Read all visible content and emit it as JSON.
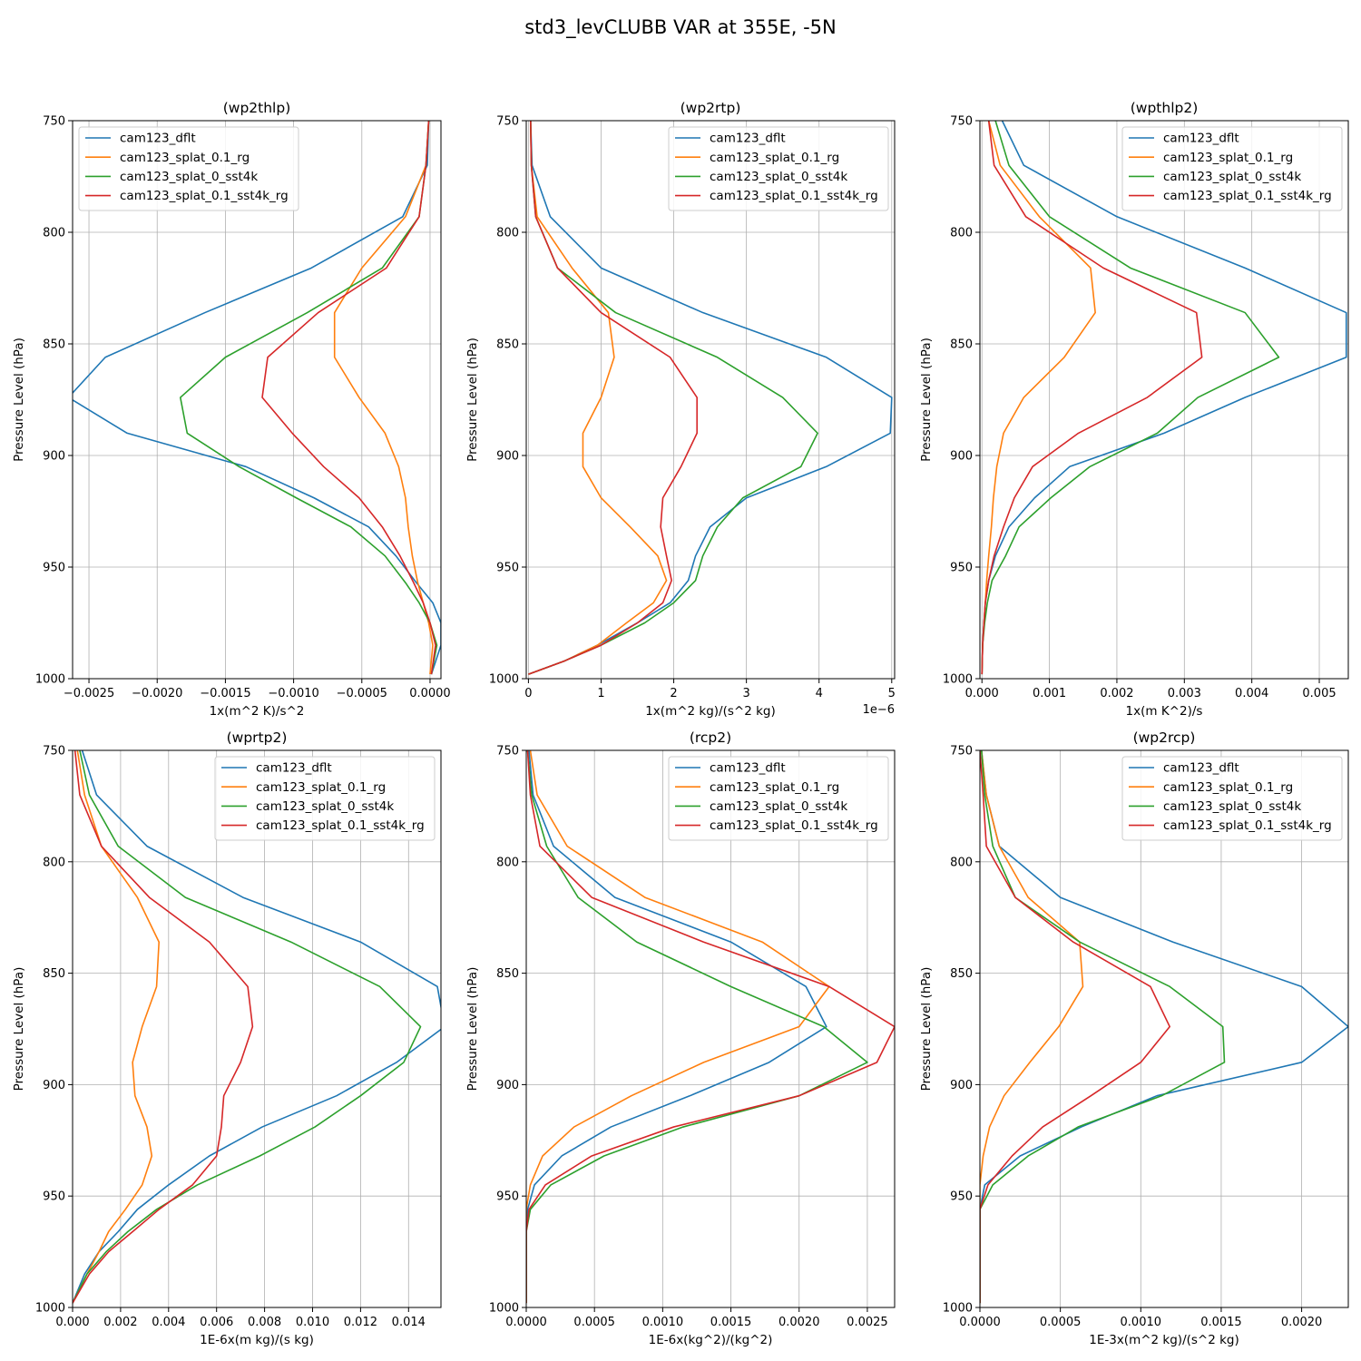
{
  "figure_title": "std3_levCLUBB VAR at 355E, -5N",
  "colors": {
    "cam123_dflt": "#1f77b4",
    "cam123_splat_0.1_rg": "#ff7f0e",
    "cam123_splat_0_sst4k": "#2ca02c",
    "cam123_splat_0.1_sst4k_rg": "#d62728"
  },
  "chart_data": [
    {
      "type": "line",
      "title": "(wp2thlp)",
      "xlabel": "1x(m^2 K)/s^2",
      "ylabel": "Pressure Level (hPa)",
      "xlim": [
        -0.00262,
        8e-05
      ],
      "ylim": [
        1000,
        750
      ],
      "xticks": [
        -0.0025,
        -0.002,
        -0.0015,
        -0.001,
        -0.0005,
        0.0
      ],
      "xtick_labels": [
        "−0.0025",
        "−0.0020",
        "−0.0015",
        "−0.0010",
        "−0.0005",
        "0.0000"
      ],
      "yticks": [
        750,
        800,
        850,
        900,
        950,
        1000
      ],
      "ytick_labels": [
        "750",
        "800",
        "850",
        "900",
        "950",
        "1000"
      ],
      "legend_loc": "upper-left",
      "y": [
        750,
        770,
        793,
        816,
        836,
        856,
        874,
        890,
        905,
        919,
        932,
        945,
        957,
        966,
        975,
        985,
        998
      ],
      "series": [
        {
          "name": "cam123_dflt",
          "values": [
            -1e-05,
            -2e-05,
            -0.0002,
            -0.00087,
            -0.00165,
            -0.00238,
            -0.00265,
            -0.00222,
            -0.00135,
            -0.00085,
            -0.00045,
            -0.00025,
            -0.0001,
            2e-05,
            8e-05,
            8e-05,
            1e-05
          ]
        },
        {
          "name": "cam123_splat_0.1_rg",
          "values": [
            -1e-05,
            -3e-05,
            -0.00018,
            -0.0005,
            -0.0007,
            -0.0007,
            -0.00052,
            -0.00033,
            -0.00023,
            -0.00018,
            -0.00016,
            -0.00013,
            -9e-05,
            -5e-05,
            -1e-05,
            2e-05,
            0.0
          ]
        },
        {
          "name": "cam123_splat_0_sst4k",
          "values": [
            -1e-05,
            -3e-05,
            -8e-05,
            -0.00035,
            -0.0009,
            -0.0015,
            -0.00183,
            -0.00178,
            -0.0014,
            -0.00098,
            -0.00058,
            -0.00033,
            -0.00018,
            -8e-05,
            0.0,
            5e-05,
            1e-05
          ]
        },
        {
          "name": "cam123_splat_0.1_sst4k_rg",
          "values": [
            -1e-05,
            -3e-05,
            -8e-05,
            -0.00032,
            -0.00082,
            -0.00119,
            -0.00123,
            -0.00101,
            -0.00078,
            -0.00052,
            -0.00035,
            -0.00022,
            -0.00012,
            -5e-05,
            0.0,
            4e-05,
            1e-05
          ]
        }
      ]
    },
    {
      "type": "line",
      "title": "(wp2rtp)",
      "xlabel": "1x(m^2 kg)/(s^2 kg)",
      "ylabel": "Pressure Level (hPa)",
      "offset_text": "1e−6",
      "xlim": [
        -0.03,
        5.04
      ],
      "ylim": [
        1000,
        750
      ],
      "xticks": [
        0,
        1,
        2,
        3,
        4,
        5
      ],
      "xtick_labels": [
        "0",
        "1",
        "2",
        "3",
        "4",
        "5"
      ],
      "yticks": [
        750,
        800,
        850,
        900,
        950,
        1000
      ],
      "ytick_labels": [
        "750",
        "800",
        "850",
        "900",
        "950",
        "1000"
      ],
      "legend_loc": "upper-right",
      "y": [
        750,
        770,
        793,
        816,
        836,
        856,
        874,
        890,
        905,
        919,
        932,
        945,
        956,
        966,
        975,
        985,
        992,
        998
      ],
      "series": [
        {
          "name": "cam123_dflt",
          "values": [
            0.03,
            0.05,
            0.3,
            1.0,
            2.4,
            4.1,
            5.0,
            4.98,
            4.1,
            3.0,
            2.5,
            2.3,
            2.2,
            1.95,
            1.5,
            0.95,
            0.5,
            0.0
          ]
        },
        {
          "name": "cam123_splat_0.1_rg",
          "values": [
            0.03,
            0.04,
            0.12,
            0.6,
            1.1,
            1.18,
            1.0,
            0.75,
            0.75,
            1.0,
            1.4,
            1.78,
            1.9,
            1.72,
            1.35,
            0.95,
            0.5,
            0.0
          ]
        },
        {
          "name": "cam123_splat_0_sst4k",
          "values": [
            0.03,
            0.04,
            0.1,
            0.4,
            1.2,
            2.6,
            3.5,
            3.98,
            3.75,
            2.95,
            2.6,
            2.4,
            2.3,
            2.0,
            1.6,
            1.0,
            0.5,
            0.0
          ]
        },
        {
          "name": "cam123_splat_0.1_sst4k_rg",
          "values": [
            0.03,
            0.04,
            0.1,
            0.4,
            1.0,
            1.95,
            2.32,
            2.32,
            2.1,
            1.85,
            1.82,
            1.9,
            1.97,
            1.85,
            1.5,
            1.0,
            0.5,
            0.0
          ]
        }
      ]
    },
    {
      "type": "line",
      "title": "(wpthlp2)",
      "xlabel": "1x(m K^2)/s",
      "ylabel": "Pressure Level (hPa)",
      "xlim": [
        -3e-05,
        0.00543
      ],
      "ylim": [
        1000,
        750
      ],
      "xticks": [
        0.0,
        0.001,
        0.002,
        0.003,
        0.004,
        0.005
      ],
      "xtick_labels": [
        "0.000",
        "0.001",
        "0.002",
        "0.003",
        "0.004",
        "0.005"
      ],
      "yticks": [
        750,
        800,
        850,
        900,
        950,
        1000
      ],
      "ytick_labels": [
        "750",
        "800",
        "850",
        "900",
        "950",
        "1000"
      ],
      "legend_loc": "upper-right",
      "y": [
        750,
        770,
        793,
        816,
        836,
        856,
        874,
        890,
        905,
        919,
        932,
        945,
        956,
        966,
        975,
        985,
        998
      ],
      "series": [
        {
          "name": "cam123_dflt",
          "values": [
            0.0003,
            0.00062,
            0.002,
            0.0039,
            0.0054,
            0.0054,
            0.0039,
            0.0027,
            0.0013,
            0.00078,
            0.0004,
            0.0002,
            0.0001,
            5e-05,
            3e-05,
            1e-05,
            0.0
          ]
        },
        {
          "name": "cam123_splat_0.1_rg",
          "values": [
            0.0001,
            0.00027,
            0.00085,
            0.00161,
            0.00168,
            0.00122,
            0.00062,
            0.00032,
            0.00022,
            0.00017,
            0.00014,
            0.0001,
            7e-05,
            5e-05,
            3e-05,
            1e-05,
            0.0
          ]
        },
        {
          "name": "cam123_splat_0_sst4k",
          "values": [
            0.0002,
            0.0004,
            0.001,
            0.0022,
            0.0039,
            0.0044,
            0.0032,
            0.0026,
            0.0016,
            0.00102,
            0.00055,
            0.00035,
            0.00015,
            8e-05,
            4e-05,
            1e-05,
            0.0
          ]
        },
        {
          "name": "cam123_splat_0.1_sst4k_rg",
          "values": [
            0.0001,
            0.00018,
            0.00065,
            0.0018,
            0.00318,
            0.00326,
            0.00245,
            0.00143,
            0.00075,
            0.00048,
            0.00032,
            0.00018,
            0.0001,
            5e-05,
            3e-05,
            1e-05,
            0.0
          ]
        }
      ]
    },
    {
      "type": "line",
      "title": "(wprtp2)",
      "xlabel": "1E-6x(m kg)/(s kg)",
      "ylabel": "Pressure Level (hPa)",
      "xlim": [
        0.0,
        0.01535
      ],
      "ylim": [
        1000,
        750
      ],
      "xticks": [
        0.0,
        0.002,
        0.004,
        0.006,
        0.008,
        0.01,
        0.012,
        0.014
      ],
      "xtick_labels": [
        "0.000",
        "0.002",
        "0.004",
        "0.006",
        "0.008",
        "0.010",
        "0.012",
        "0.014"
      ],
      "yticks": [
        750,
        800,
        850,
        900,
        950,
        1000
      ],
      "ytick_labels": [
        "750",
        "800",
        "850",
        "900",
        "950",
        "1000"
      ],
      "legend_loc": "upper-right",
      "y": [
        750,
        770,
        793,
        816,
        836,
        856,
        874,
        890,
        905,
        919,
        932,
        945,
        956,
        966,
        975,
        985,
        998
      ],
      "series": [
        {
          "name": "cam123_dflt",
          "values": [
            0.0004,
            0.001,
            0.0031,
            0.0071,
            0.012,
            0.0152,
            0.0155,
            0.0135,
            0.011,
            0.0079,
            0.0057,
            0.004,
            0.0027,
            0.0019,
            0.0011,
            0.0005,
            0.0
          ]
        },
        {
          "name": "cam123_splat_0.1_rg",
          "values": [
            0.0002,
            0.0005,
            0.0012,
            0.0027,
            0.0036,
            0.0035,
            0.0029,
            0.0025,
            0.0026,
            0.0031,
            0.0033,
            0.0029,
            0.0022,
            0.0015,
            0.0011,
            0.0006,
            0.0
          ]
        },
        {
          "name": "cam123_splat_0_sst4k",
          "values": [
            0.0003,
            0.0007,
            0.0019,
            0.0047,
            0.0091,
            0.0128,
            0.0145,
            0.0138,
            0.012,
            0.0101,
            0.0078,
            0.0052,
            0.0035,
            0.0023,
            0.0014,
            0.0006,
            0.0
          ]
        },
        {
          "name": "cam123_splat_0.1_sst4k_rg",
          "values": [
            0.0001,
            0.0003,
            0.0012,
            0.0032,
            0.0057,
            0.0073,
            0.0075,
            0.007,
            0.0063,
            0.0062,
            0.006,
            0.005,
            0.0036,
            0.0025,
            0.0015,
            0.0007,
            0.0
          ]
        }
      ]
    },
    {
      "type": "line",
      "title": "(rcp2)",
      "xlabel": "1E-6x(kg^2)/(kg^2)",
      "ylabel": "Pressure Level (hPa)",
      "xlim": [
        0.0,
        0.0027
      ],
      "ylim": [
        1000,
        750
      ],
      "xticks": [
        0.0,
        0.0005,
        0.001,
        0.0015,
        0.002,
        0.0025
      ],
      "xtick_labels": [
        "0.0000",
        "0.0005",
        "0.0010",
        "0.0015",
        "0.0020",
        "0.0025"
      ],
      "yticks": [
        750,
        800,
        850,
        900,
        950,
        1000
      ],
      "ytick_labels": [
        "750",
        "800",
        "850",
        "900",
        "950",
        "1000"
      ],
      "legend_loc": "upper-right",
      "y": [
        750,
        770,
        793,
        816,
        836,
        856,
        874,
        890,
        905,
        919,
        932,
        945,
        956,
        966,
        975,
        985,
        998
      ],
      "series": [
        {
          "name": "cam123_dflt",
          "values": [
            2e-05,
            5e-05,
            0.0002,
            0.00065,
            0.0015,
            0.00205,
            0.0022,
            0.00178,
            0.0012,
            0.00062,
            0.00026,
            6e-05,
            1e-05,
            0.0,
            0.0,
            0.0,
            0.0
          ]
        },
        {
          "name": "cam123_splat_0.1_rg",
          "values": [
            3e-05,
            8e-05,
            0.0003,
            0.00087,
            0.00173,
            0.00222,
            0.002,
            0.0013,
            0.00077,
            0.00035,
            0.00012,
            3e-05,
            0.0,
            0.0,
            0.0,
            0.0,
            0.0
          ]
        },
        {
          "name": "cam123_splat_0_sst4k",
          "values": [
            1e-05,
            4e-05,
            0.00015,
            0.00038,
            0.00081,
            0.0015,
            0.00218,
            0.0025,
            0.002,
            0.00115,
            0.00057,
            0.00018,
            3e-05,
            0.0,
            0.0,
            0.0,
            0.0
          ]
        },
        {
          "name": "cam123_splat_0.1_sst4k_rg",
          "values": [
            1e-05,
            3e-05,
            0.0001,
            0.00048,
            0.0013,
            0.00222,
            0.0027,
            0.00257,
            0.002,
            0.00108,
            0.00048,
            0.00014,
            2e-05,
            0.0,
            0.0,
            0.0,
            0.0
          ]
        }
      ]
    },
    {
      "type": "line",
      "title": "(wp2rcp)",
      "xlabel": "1E-3x(m^2 kg)/(s^2 kg)",
      "ylabel": "Pressure Level (hPa)",
      "xlim": [
        0.0,
        0.00229
      ],
      "ylim": [
        1000,
        750
      ],
      "xticks": [
        0.0,
        0.0005,
        0.001,
        0.0015,
        0.002
      ],
      "xtick_labels": [
        "0.0000",
        "0.0005",
        "0.0010",
        "0.0015",
        "0.0020"
      ],
      "yticks": [
        750,
        800,
        850,
        900,
        950,
        1000
      ],
      "ytick_labels": [
        "750",
        "800",
        "850",
        "900",
        "950",
        "1000"
      ],
      "legend_loc": "upper-right",
      "y": [
        750,
        770,
        793,
        816,
        836,
        856,
        874,
        890,
        905,
        919,
        932,
        945,
        956,
        966,
        975,
        985,
        998
      ],
      "series": [
        {
          "name": "cam123_dflt",
          "values": [
            1e-05,
            4e-05,
            0.00012,
            0.0005,
            0.0012,
            0.002,
            0.00229,
            0.002,
            0.0011,
            0.00063,
            0.00025,
            3e-05,
            0.0,
            0.0,
            0.0,
            0.0,
            0.0
          ]
        },
        {
          "name": "cam123_splat_0.1_rg",
          "values": [
            1e-05,
            4e-05,
            0.00012,
            0.0003,
            0.00062,
            0.00064,
            0.00049,
            0.00031,
            0.00015,
            6e-05,
            2e-05,
            0.0,
            0.0,
            0.0,
            0.0,
            0.0,
            0.0
          ]
        },
        {
          "name": "cam123_splat_0_sst4k",
          "values": [
            1e-05,
            3e-05,
            8e-05,
            0.00022,
            0.00062,
            0.00118,
            0.00151,
            0.00152,
            0.00113,
            0.00061,
            0.0003,
            8e-05,
            0.0,
            0.0,
            0.0,
            0.0,
            0.0
          ]
        },
        {
          "name": "cam123_splat_0.1_sst4k_rg",
          "values": [
            0.0,
            2e-05,
            4e-05,
            0.00022,
            0.00058,
            0.00106,
            0.00118,
            0.001,
            0.00069,
            0.00039,
            0.0002,
            5e-05,
            0.0,
            0.0,
            0.0,
            0.0,
            0.0
          ]
        }
      ]
    }
  ]
}
